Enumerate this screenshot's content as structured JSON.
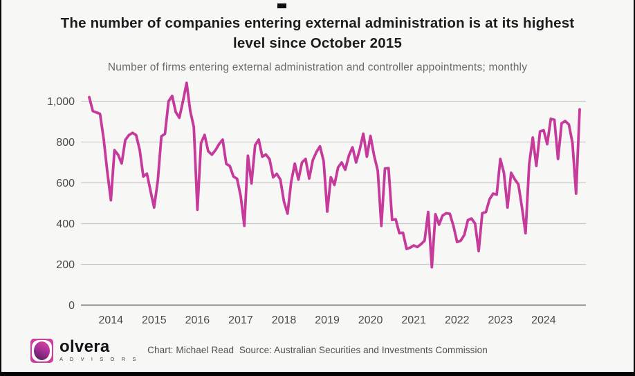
{
  "title": {
    "line1": "The number of companies entering external administration is at its highest",
    "line2": "level since October 2015"
  },
  "subtitle": "Number of firms entering external administration and controller appointments; monthly",
  "footer": {
    "credit": "Chart: Michael Read  Source: Australian Securities and Investments Commission",
    "logo_name": "olvera",
    "logo_tagline": "A D V I S O R S"
  },
  "colors": {
    "line": "#c63a9b",
    "grid": "#c9c9c9",
    "axis_baseline": "#8d8d8d",
    "tick_text": "#4b4b4b",
    "background": "#f7f7f6"
  },
  "chart_data": {
    "type": "line",
    "title": "The number of companies entering external administration is at its highest level since October 2015",
    "subtitle": "Number of firms entering external administration and controller appointments; monthly",
    "frequency": "monthly",
    "x_start_month": "2013-07",
    "x_end_month": "2024-11",
    "x_tick_labels": [
      "2014",
      "2015",
      "2016",
      "2017",
      "2018",
      "2019",
      "2020",
      "2021",
      "2022",
      "2023",
      "2024"
    ],
    "first_january_index": 6,
    "y_ticks": [
      {
        "value": 0,
        "label": "0"
      },
      {
        "value": 200,
        "label": "200"
      },
      {
        "value": 400,
        "label": "400"
      },
      {
        "value": 600,
        "label": "600"
      },
      {
        "value": 800,
        "label": "800"
      },
      {
        "value": 1000,
        "label": "1,000"
      }
    ],
    "ylim": [
      0,
      1100
    ],
    "grid": "horizontal",
    "legend": "none",
    "series": [
      {
        "name": "Firms entering external administration and controller appointments",
        "color": "#c63a9b",
        "values": [
          1020,
          952,
          945,
          938,
          815,
          655,
          515,
          760,
          738,
          695,
          810,
          834,
          845,
          834,
          761,
          631,
          645,
          560,
          479,
          610,
          828,
          840,
          1000,
          1026,
          947,
          919,
          1000,
          1090,
          953,
          874,
          468,
          795,
          835,
          755,
          738,
          760,
          790,
          812,
          693,
          682,
          631,
          620,
          535,
          389,
          733,
          597,
          784,
          812,
          728,
          739,
          716,
          627,
          644,
          616,
          508,
          449,
          604,
          694,
          616,
          700,
          717,
          621,
          711,
          751,
          779,
          706,
          459,
          627,
          590,
          675,
          700,
          664,
          734,
          774,
          700,
          762,
          841,
          728,
          830,
          734,
          660,
          389,
          670,
          672,
          418,
          421,
          353,
          355,
          276,
          282,
          293,
          285,
          299,
          316,
          457,
          186,
          446,
          395,
          440,
          451,
          448,
          389,
          310,
          316,
          344,
          417,
          425,
          400,
          265,
          451,
          457,
          519,
          547,
          542,
          717,
          649,
          479,
          649,
          617,
          593,
          479,
          353,
          690,
          822,
          683,
          852,
          858,
          790,
          914,
          909,
          717,
          892,
          903,
          886,
          796,
          547,
          960
        ]
      }
    ]
  }
}
